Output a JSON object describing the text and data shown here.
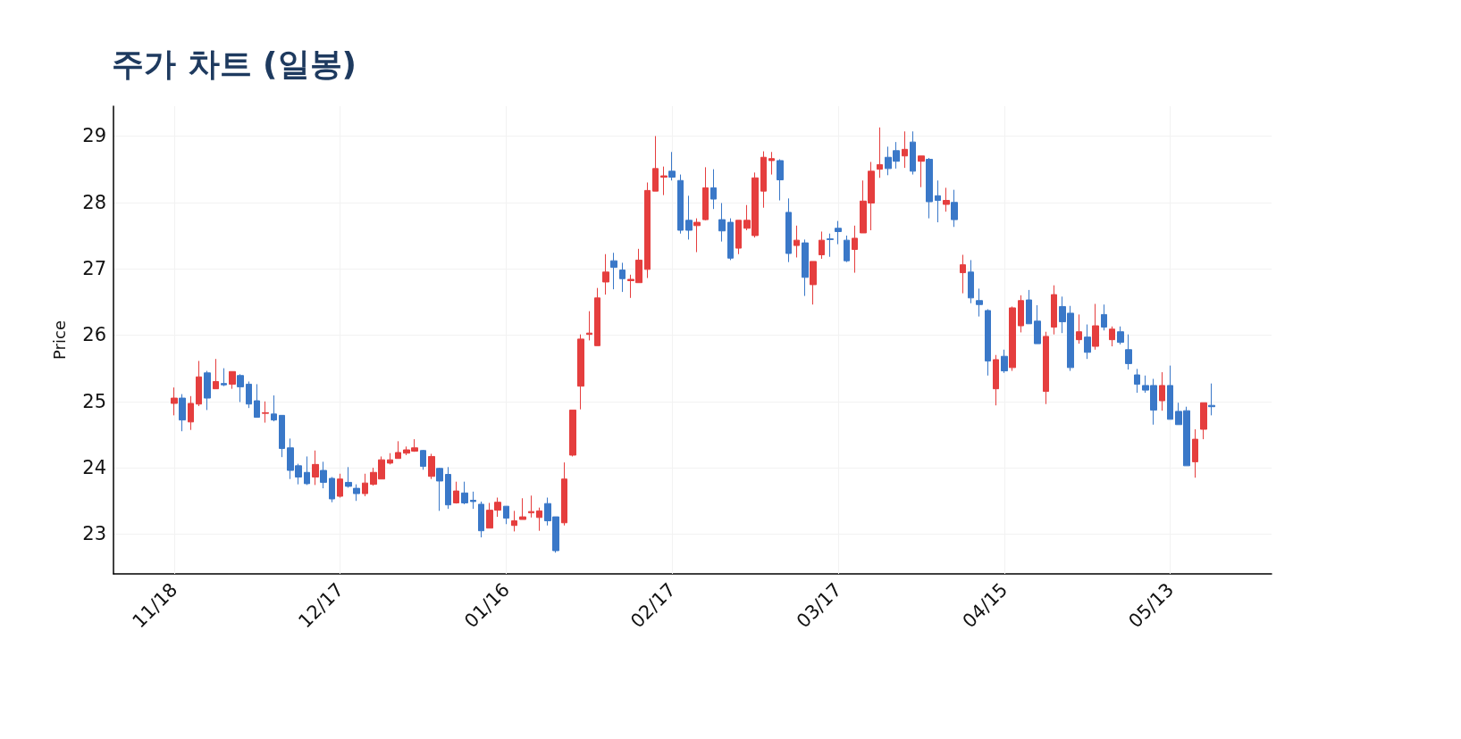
{
  "chart_data": {
    "type": "candlestick",
    "title": "주가 차트 (일봉)",
    "ylabel": "Price",
    "categories": [
      "11/18",
      null,
      null,
      null,
      null,
      null,
      null,
      null,
      null,
      null,
      null,
      null,
      null,
      null,
      null,
      null,
      null,
      null,
      null,
      null,
      "12/17",
      null,
      null,
      null,
      null,
      null,
      null,
      null,
      null,
      null,
      null,
      null,
      null,
      null,
      null,
      null,
      null,
      null,
      null,
      null,
      "01/16",
      null,
      null,
      null,
      null,
      null,
      null,
      null,
      null,
      null,
      null,
      null,
      null,
      null,
      null,
      null,
      null,
      null,
      null,
      null,
      "02/17",
      null,
      null,
      null,
      null,
      null,
      null,
      null,
      null,
      null,
      null,
      null,
      null,
      null,
      null,
      null,
      null,
      null,
      null,
      null,
      "03/17",
      null,
      null,
      null,
      null,
      null,
      null,
      null,
      null,
      null,
      null,
      null,
      null,
      null,
      null,
      null,
      null,
      null,
      null,
      null,
      "04/15",
      null,
      null,
      null,
      null,
      null,
      null,
      null,
      null,
      null,
      null,
      null,
      null,
      null,
      null,
      null,
      null,
      null,
      null,
      null,
      "05/13",
      null,
      null,
      null,
      null,
      null
    ],
    "ohlc": [
      [
        24.97,
        25.21,
        24.79,
        25.05
      ],
      [
        25.05,
        25.11,
        24.55,
        24.72
      ],
      [
        24.69,
        25.08,
        24.57,
        24.97
      ],
      [
        24.96,
        25.61,
        24.93,
        25.37
      ],
      [
        25.43,
        25.46,
        24.87,
        25.05
      ],
      [
        25.19,
        25.64,
        25.19,
        25.3
      ],
      [
        25.27,
        25.5,
        25.23,
        25.25
      ],
      [
        25.26,
        25.45,
        25.19,
        25.45
      ],
      [
        25.39,
        25.41,
        24.99,
        25.22
      ],
      [
        25.26,
        25.3,
        24.9,
        24.96
      ],
      [
        25.01,
        25.26,
        24.76,
        24.76
      ],
      [
        24.82,
        25.0,
        24.68,
        24.83
      ],
      [
        24.81,
        25.09,
        24.7,
        24.72
      ],
      [
        24.79,
        24.79,
        24.16,
        24.29
      ],
      [
        24.3,
        24.44,
        23.83,
        23.96
      ],
      [
        24.03,
        24.06,
        23.75,
        23.86
      ],
      [
        23.93,
        24.17,
        23.74,
        23.76
      ],
      [
        23.86,
        24.26,
        23.74,
        24.05
      ],
      [
        23.96,
        24.09,
        23.69,
        23.78
      ],
      [
        23.84,
        23.86,
        23.48,
        23.53
      ],
      [
        23.57,
        23.91,
        23.55,
        23.83
      ],
      [
        23.78,
        24.01,
        23.7,
        23.72
      ],
      [
        23.69,
        23.75,
        23.5,
        23.61
      ],
      [
        23.61,
        23.91,
        23.57,
        23.77
      ],
      [
        23.75,
        24.0,
        23.73,
        23.93
      ],
      [
        23.83,
        24.17,
        23.83,
        24.12
      ],
      [
        24.07,
        24.22,
        24.05,
        24.12
      ],
      [
        24.14,
        24.4,
        24.14,
        24.23
      ],
      [
        24.22,
        24.32,
        24.19,
        24.27
      ],
      [
        24.25,
        24.43,
        24.24,
        24.3
      ],
      [
        24.26,
        24.27,
        23.97,
        24.02
      ],
      [
        23.87,
        24.21,
        23.83,
        24.17
      ],
      [
        23.99,
        24.0,
        23.35,
        23.8
      ],
      [
        23.9,
        24.01,
        23.38,
        23.44
      ],
      [
        23.47,
        23.79,
        23.46,
        23.65
      ],
      [
        23.62,
        23.79,
        23.45,
        23.47
      ],
      [
        23.51,
        23.64,
        23.38,
        23.49
      ],
      [
        23.45,
        23.49,
        22.95,
        23.05
      ],
      [
        23.09,
        23.47,
        23.09,
        23.36
      ],
      [
        23.36,
        23.55,
        23.26,
        23.48
      ],
      [
        23.42,
        23.42,
        23.15,
        23.24
      ],
      [
        23.13,
        23.35,
        23.04,
        23.2
      ],
      [
        23.22,
        23.54,
        23.22,
        23.26
      ],
      [
        23.32,
        23.58,
        23.25,
        23.34
      ],
      [
        23.25,
        23.4,
        23.05,
        23.35
      ],
      [
        23.46,
        23.55,
        23.13,
        23.2
      ],
      [
        23.26,
        23.26,
        22.72,
        22.75
      ],
      [
        23.17,
        24.08,
        23.13,
        23.83
      ],
      [
        24.19,
        24.87,
        24.17,
        24.87
      ],
      [
        25.23,
        26.01,
        24.88,
        25.94
      ],
      [
        26.01,
        26.36,
        25.92,
        26.03
      ],
      [
        25.84,
        26.71,
        25.84,
        26.56
      ],
      [
        26.8,
        27.22,
        26.61,
        26.95
      ],
      [
        27.12,
        27.24,
        26.69,
        27.02
      ],
      [
        26.98,
        27.09,
        26.65,
        26.85
      ],
      [
        26.82,
        26.91,
        26.56,
        26.84
      ],
      [
        26.79,
        27.3,
        26.79,
        27.13
      ],
      [
        26.99,
        28.3,
        26.86,
        28.18
      ],
      [
        28.17,
        29.0,
        28.17,
        28.51
      ],
      [
        28.38,
        28.54,
        28.11,
        28.4
      ],
      [
        28.47,
        28.76,
        28.33,
        28.38
      ],
      [
        28.33,
        28.42,
        27.53,
        27.58
      ],
      [
        27.73,
        28.1,
        27.44,
        27.58
      ],
      [
        27.65,
        27.76,
        27.25,
        27.7
      ],
      [
        27.74,
        28.53,
        27.73,
        28.22
      ],
      [
        28.22,
        28.5,
        27.9,
        28.05
      ],
      [
        27.74,
        27.99,
        27.41,
        27.57
      ],
      [
        27.7,
        27.76,
        27.13,
        27.16
      ],
      [
        27.31,
        27.73,
        27.22,
        27.73
      ],
      [
        27.61,
        27.96,
        27.58,
        27.73
      ],
      [
        27.5,
        28.45,
        27.47,
        28.37
      ],
      [
        28.17,
        28.77,
        27.92,
        28.68
      ],
      [
        28.63,
        28.76,
        28.42,
        28.66
      ],
      [
        28.63,
        28.65,
        28.03,
        28.34
      ],
      [
        27.85,
        28.06,
        27.1,
        27.23
      ],
      [
        27.35,
        27.65,
        27.17,
        27.43
      ],
      [
        27.39,
        27.44,
        26.59,
        26.87
      ],
      [
        26.76,
        27.11,
        26.46,
        27.11
      ],
      [
        27.21,
        27.56,
        27.15,
        27.43
      ],
      [
        27.45,
        27.53,
        27.18,
        27.44
      ],
      [
        27.61,
        27.72,
        27.37,
        27.56
      ],
      [
        27.43,
        27.5,
        27.1,
        27.12
      ],
      [
        27.29,
        27.65,
        26.94,
        27.46
      ],
      [
        27.54,
        28.33,
        27.54,
        28.02
      ],
      [
        27.99,
        28.61,
        27.58,
        28.47
      ],
      [
        28.5,
        29.13,
        28.37,
        28.57
      ],
      [
        28.68,
        28.84,
        28.41,
        28.51
      ],
      [
        28.78,
        28.91,
        28.51,
        28.62
      ],
      [
        28.7,
        29.07,
        28.52,
        28.8
      ],
      [
        28.91,
        29.07,
        28.42,
        28.47
      ],
      [
        28.62,
        28.7,
        28.23,
        28.7
      ],
      [
        28.65,
        28.67,
        27.76,
        28.01
      ],
      [
        28.1,
        28.33,
        27.7,
        28.03
      ],
      [
        27.97,
        28.22,
        27.86,
        28.03
      ],
      [
        28.0,
        28.19,
        27.63,
        27.74
      ],
      [
        26.94,
        27.21,
        26.63,
        27.06
      ],
      [
        26.95,
        27.13,
        26.48,
        26.56
      ],
      [
        26.52,
        26.7,
        26.28,
        26.46
      ],
      [
        26.37,
        26.39,
        25.39,
        25.61
      ],
      [
        25.19,
        25.7,
        24.94,
        25.63
      ],
      [
        25.68,
        25.78,
        25.43,
        25.46
      ],
      [
        25.51,
        26.43,
        25.46,
        26.41
      ],
      [
        26.14,
        26.6,
        26.04,
        26.52
      ],
      [
        26.53,
        26.68,
        26.17,
        26.17
      ],
      [
        26.21,
        26.45,
        25.87,
        25.87
      ],
      [
        25.15,
        26.05,
        24.96,
        25.98
      ],
      [
        26.12,
        26.75,
        26.01,
        26.61
      ],
      [
        26.43,
        26.58,
        26.03,
        26.2
      ],
      [
        26.33,
        26.44,
        25.46,
        25.51
      ],
      [
        25.93,
        26.31,
        25.87,
        26.05
      ],
      [
        25.97,
        26.16,
        25.64,
        25.74
      ],
      [
        25.83,
        26.47,
        25.78,
        26.14
      ],
      [
        26.31,
        26.46,
        26.07,
        26.12
      ],
      [
        25.93,
        26.13,
        25.83,
        26.09
      ],
      [
        26.05,
        26.13,
        25.86,
        25.89
      ],
      [
        25.78,
        26.01,
        25.48,
        25.57
      ],
      [
        25.4,
        25.49,
        25.13,
        25.26
      ],
      [
        25.24,
        25.39,
        25.13,
        25.17
      ],
      [
        25.24,
        25.34,
        24.65,
        24.87
      ],
      [
        25.01,
        25.44,
        24.86,
        25.24
      ],
      [
        25.24,
        25.54,
        24.73,
        24.73
      ],
      [
        24.85,
        24.98,
        24.65,
        24.65
      ],
      [
        24.86,
        24.92,
        24.03,
        24.03
      ],
      [
        24.09,
        24.58,
        23.85,
        24.43
      ],
      [
        24.58,
        24.98,
        24.43,
        24.98
      ],
      [
        24.94,
        25.27,
        24.79,
        24.92
      ]
    ],
    "colors": [
      "#e53e3e",
      "#3a78c8",
      "#e53e3e",
      "#e53e3e",
      "#3a78c8",
      "#e53e3e",
      "#3a78c8",
      "#e53e3e",
      "#3a78c8",
      "#3a78c8",
      "#3a78c8",
      "#e53e3e",
      "#3a78c8",
      "#3a78c8",
      "#3a78c8",
      "#3a78c8",
      "#3a78c8",
      "#e53e3e",
      "#3a78c8",
      "#3a78c8",
      "#e53e3e",
      "#3a78c8",
      "#3a78c8",
      "#e53e3e",
      "#e53e3e",
      "#e53e3e",
      "#e53e3e",
      "#e53e3e",
      "#e53e3e",
      "#e53e3e",
      "#3a78c8",
      "#e53e3e",
      "#3a78c8",
      "#3a78c8",
      "#e53e3e",
      "#3a78c8",
      "#3a78c8",
      "#3a78c8",
      "#e53e3e",
      "#e53e3e",
      "#3a78c8",
      "#e53e3e",
      "#e53e3e",
      "#e53e3e",
      "#e53e3e",
      "#3a78c8",
      "#3a78c8",
      "#e53e3e",
      "#e53e3e",
      "#e53e3e",
      "#e53e3e",
      "#e53e3e",
      "#e53e3e",
      "#3a78c8",
      "#3a78c8",
      "#e53e3e",
      "#e53e3e",
      "#e53e3e",
      "#e53e3e",
      "#e53e3e",
      "#3a78c8",
      "#3a78c8",
      "#3a78c8",
      "#e53e3e",
      "#e53e3e",
      "#3a78c8",
      "#3a78c8",
      "#3a78c8",
      "#e53e3e",
      "#e53e3e",
      "#e53e3e",
      "#e53e3e",
      "#e53e3e",
      "#3a78c8",
      "#3a78c8",
      "#e53e3e",
      "#3a78c8",
      "#e53e3e",
      "#e53e3e",
      "#3a78c8",
      "#3a78c8",
      "#3a78c8",
      "#e53e3e",
      "#e53e3e",
      "#e53e3e",
      "#e53e3e",
      "#3a78c8",
      "#3a78c8",
      "#e53e3e",
      "#3a78c8",
      "#e53e3e",
      "#3a78c8",
      "#3a78c8",
      "#e53e3e",
      "#3a78c8",
      "#e53e3e",
      "#3a78c8",
      "#3a78c8",
      "#3a78c8",
      "#e53e3e",
      "#3a78c8",
      "#e53e3e",
      "#e53e3e",
      "#3a78c8",
      "#3a78c8",
      "#e53e3e",
      "#e53e3e",
      "#3a78c8",
      "#3a78c8",
      "#e53e3e",
      "#3a78c8",
      "#e53e3e",
      "#3a78c8",
      "#e53e3e",
      "#3a78c8",
      "#3a78c8",
      "#3a78c8",
      "#3a78c8",
      "#3a78c8",
      "#e53e3e",
      "#3a78c8",
      "#3a78c8",
      "#3a78c8",
      "#e53e3e",
      "#e53e3e",
      "#3a78c8"
    ],
    "ylim": [
      22.4,
      29.45
    ],
    "yticks": [
      23,
      24,
      25,
      26,
      27,
      28,
      29
    ],
    "grid": true
  }
}
